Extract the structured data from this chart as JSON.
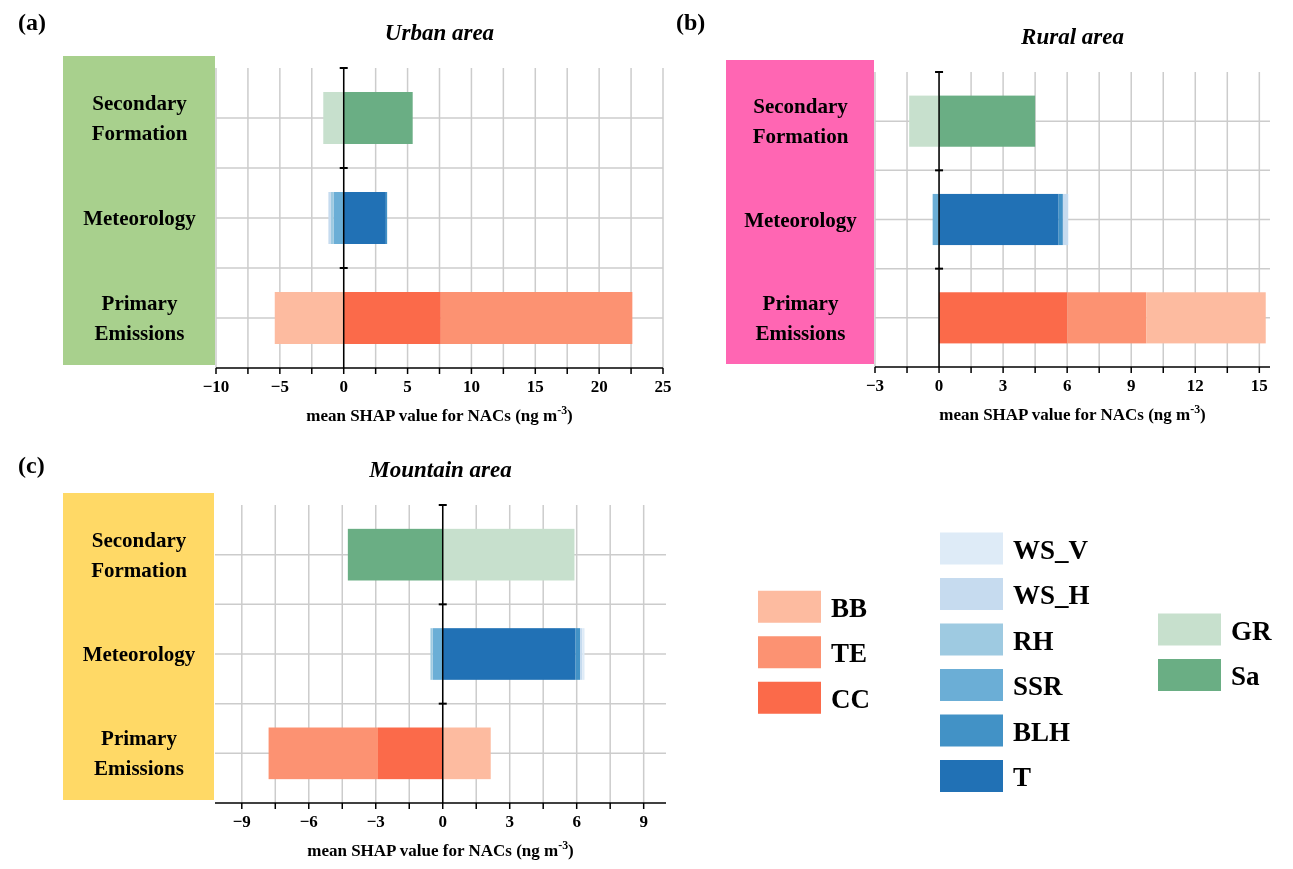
{
  "chart_data": [
    {
      "type": "bar",
      "orientation": "horizontal",
      "stacked": true,
      "title": "Urban area",
      "xlabel": "mean SHAP value for NACs (ng m$^{-3}$)",
      "annotations": [
        "(a)"
      ],
      "categories": [
        "Secondary Formation",
        "Meteorology",
        "Primary Emissions"
      ],
      "xlim": [
        -10,
        25
      ],
      "xticks": [
        -10,
        {
          "value": -7.5,
          "label": null
        },
        -5,
        {
          "value": -2.5,
          "label": null
        },
        0,
        {
          "value": 2.5,
          "label": null
        },
        5,
        {
          "value": 7.5,
          "label": null
        },
        10,
        {
          "value": 12.5,
          "label": null
        },
        15,
        {
          "value": 17.5,
          "label": null
        },
        20,
        {
          "value": 22.5,
          "label": null
        },
        25
      ],
      "grid": true,
      "legend": false,
      "series": [
        {
          "color": "#fb6a4a",
          "values": [
            null,
            null,
            7.6
          ]
        },
        {
          "color": "#fc9272",
          "values": [
            null,
            null,
            15.0
          ]
        },
        {
          "color": "#fdbba0",
          "values": [
            null,
            null,
            -5.4
          ]
        },
        {
          "color": "#2171b5",
          "values": [
            null,
            3.3,
            null
          ]
        },
        {
          "color": "#4292c6",
          "values": [
            null,
            0.1,
            null
          ]
        },
        {
          "color": "#6baed6",
          "values": [
            null,
            -0.8,
            null
          ]
        },
        {
          "color": "#9ecae1",
          "values": [
            null,
            -0.2,
            null
          ]
        },
        {
          "color": "#c6dbef",
          "values": [
            null,
            -0.2,
            null
          ]
        },
        {
          "color": "#6aae84",
          "values": [
            5.4,
            null,
            null
          ]
        },
        {
          "color": "#c7e0cd",
          "values": [
            -1.6,
            null,
            null
          ]
        }
      ]
    },
    {
      "type": "bar",
      "orientation": "horizontal",
      "stacked": true,
      "title": "Rural area",
      "xlabel": "mean SHAP value for NACs (ng m$^{-3}$)",
      "annotations": [
        "(b)"
      ],
      "categories": [
        "Secondary Formation",
        "Meteorology",
        "Primary Emissions"
      ],
      "xlim": [
        -3,
        15.5
      ],
      "xticks": [
        -3,
        {
          "value": -1.5,
          "label": null
        },
        0,
        {
          "value": 1.5,
          "label": null
        },
        3,
        {
          "value": 4.5,
          "label": null
        },
        6,
        {
          "value": 7.5,
          "label": null
        },
        9,
        {
          "value": 10.5,
          "label": null
        },
        12,
        {
          "value": 13.5,
          "label": null
        },
        15
      ],
      "grid": true,
      "legend": false,
      "series": [
        {
          "color": "#fb6a4a",
          "values": [
            null,
            null,
            6.0
          ]
        },
        {
          "color": "#fc9272",
          "values": [
            null,
            null,
            3.7
          ]
        },
        {
          "color": "#fdbba0",
          "values": [
            null,
            null,
            5.6
          ]
        },
        {
          "color": "#2171b5",
          "values": [
            null,
            5.6,
            null
          ]
        },
        {
          "color": "#4292c6",
          "values": [
            null,
            0.2,
            null
          ]
        },
        {
          "color": "#6baed6",
          "values": [
            null,
            -0.3,
            null
          ]
        },
        {
          "color": "#c6dbef",
          "values": [
            null,
            0.25,
            null
          ]
        },
        {
          "color": "#6aae84",
          "values": [
            4.5,
            null,
            null
          ]
        },
        {
          "color": "#c7e0cd",
          "values": [
            -1.4,
            null,
            null
          ]
        }
      ]
    },
    {
      "type": "bar",
      "orientation": "horizontal",
      "stacked": true,
      "title": "Mountain area",
      "xlabel": "mean SHAP value for NACs (ng m$^{-3}$)",
      "annotations": [
        "(c)"
      ],
      "categories": [
        "Secondary Formation",
        "Meteorology",
        "Primary Emissions"
      ],
      "xlim": [
        -10.2,
        10
      ],
      "xticks": [
        -9,
        {
          "value": -7.5,
          "label": null
        },
        -6,
        {
          "value": -4.5,
          "label": null
        },
        -3,
        {
          "value": -1.5,
          "label": null
        },
        0,
        {
          "value": 1.5,
          "label": null
        },
        3,
        {
          "value": 4.5,
          "label": null
        },
        6,
        {
          "value": 7.5,
          "label": null
        },
        9
      ],
      "grid": true,
      "legend": "right",
      "series": [
        {
          "name": "CC",
          "color": "#fb6a4a",
          "values": [
            null,
            null,
            -2.9
          ]
        },
        {
          "name": "TE",
          "color": "#fc9272",
          "values": [
            null,
            null,
            -4.9
          ]
        },
        {
          "name": "BB",
          "color": "#fdbba0",
          "values": [
            null,
            null,
            2.15
          ]
        },
        {
          "name": "T",
          "color": "#2171b5",
          "values": [
            null,
            5.95,
            null
          ]
        },
        {
          "name": "BLH",
          "color": "#4292c6",
          "values": [
            null,
            0.2,
            null
          ]
        },
        {
          "name": "SSR",
          "color": "#6baed6",
          "values": [
            null,
            -0.45,
            null
          ]
        },
        {
          "name": "RH",
          "color": "#9ecae1",
          "values": [
            null,
            -0.1,
            null
          ]
        },
        {
          "name": "WS_H",
          "color": "#c6dbef",
          "values": [
            null,
            0.1,
            null
          ]
        },
        {
          "name": "WS_V",
          "color": "#deebf7",
          "values": [
            null,
            0.1,
            null
          ]
        },
        {
          "name": "Sa",
          "color": "#6aae84",
          "values": [
            -4.25,
            null,
            null
          ]
        },
        {
          "name": "GR",
          "color": "#c7e0cd",
          "values": [
            5.9,
            null,
            null
          ]
        }
      ]
    }
  ]
}
